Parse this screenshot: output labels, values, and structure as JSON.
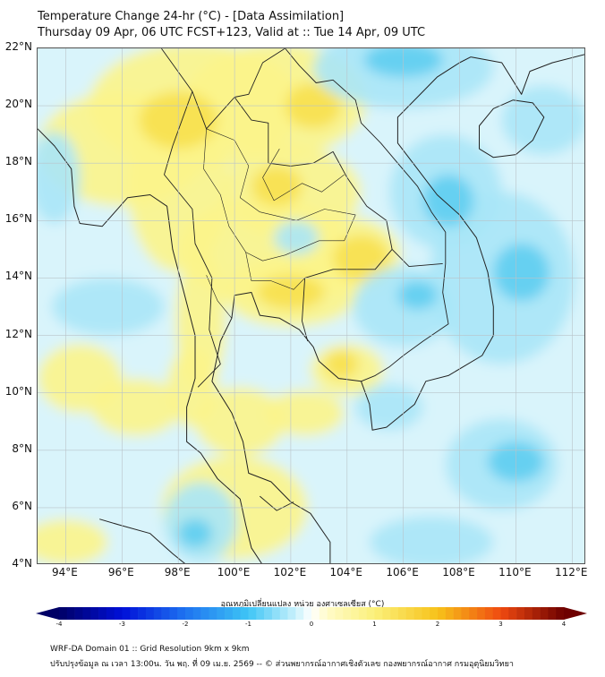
{
  "header": {
    "title_line1": "Temperature Change 24-hr (°C) - [Data Assimilation]",
    "title_line2": "Thursday 09 Apr, 06 UTC FCST+123, Valid at :: Tue 14 Apr, 09 UTC"
  },
  "map": {
    "lat_range": [
      4,
      22
    ],
    "lon_range": [
      93,
      112.5
    ],
    "lat_labels": [
      "22°N",
      "20°N",
      "18°N",
      "16°N",
      "14°N",
      "12°N",
      "10°N",
      "8°N",
      "6°N",
      "4°N"
    ],
    "lat_values": [
      22,
      20,
      18,
      16,
      14,
      12,
      10,
      8,
      6,
      4
    ],
    "lon_labels": [
      "94°E",
      "96°E",
      "98°E",
      "100°E",
      "102°E",
      "104°E",
      "106°E",
      "108°E",
      "110°E",
      "112°E"
    ],
    "lon_values": [
      94,
      96,
      98,
      100,
      102,
      104,
      106,
      108,
      110,
      112
    ],
    "colors": {
      "background": "#d9f4fb",
      "warm": "#fbf48a",
      "warmer": "#f7e04d",
      "cool": "#a8e6f7",
      "cooler": "#5ecdf0",
      "coast": "#222222",
      "grid": "#b9c3c9"
    }
  },
  "colorbar": {
    "title": "อุณหภูมิเปลี่ยนแปลง หน่วย องศาเซลเซียส (°C)",
    "ticks": [
      "-4",
      "-3",
      "-2",
      "-1",
      "0",
      "1",
      "2",
      "3",
      "4"
    ],
    "min": -4,
    "max": 4
  },
  "footer": {
    "line1": "WRF-DA Domain 01 :: Grid Resolution 9km x 9km",
    "line2": "ปรับปรุงข้อมูล ณ เวลา 13:00น. วัน พฤ. ที่ 09 เม.ย. 2569 -- © ส่วนพยากรณ์อากาศเชิงตัวเลข กองพยากรณ์อากาศ กรมอุตุนิยมวิทยา"
  }
}
